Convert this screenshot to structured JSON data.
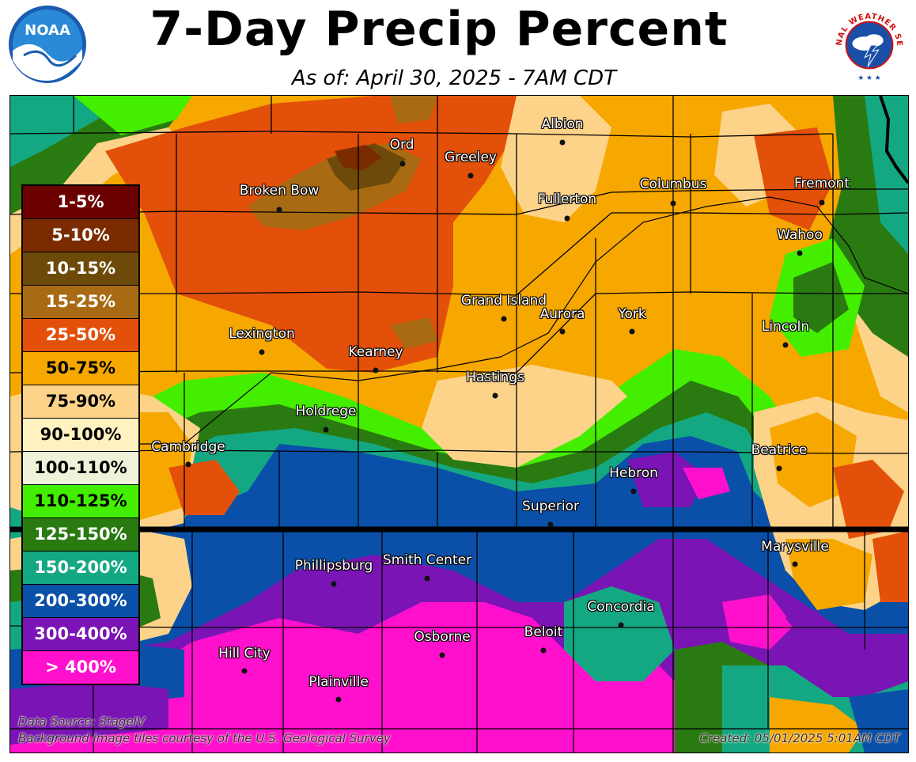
{
  "title": "7-Day Precip Percent",
  "subtitle": "As of: April 30, 2025 - 7AM CDT",
  "logos": {
    "noara_text": "NOAA",
    "nws_text": "NATIONAL WEATHER SERVICE"
  },
  "legend": [
    {
      "label": "1-5%",
      "color": "#6b0000",
      "text_color": "#ffffff"
    },
    {
      "label": "5-10%",
      "color": "#7a2c00",
      "text_color": "#ffffff"
    },
    {
      "label": "10-15%",
      "color": "#6e4a0a",
      "text_color": "#ffffff"
    },
    {
      "label": "15-25%",
      "color": "#a86a12",
      "text_color": "#ffffff"
    },
    {
      "label": "25-50%",
      "color": "#e2500a",
      "text_color": "#ffffff"
    },
    {
      "label": "50-75%",
      "color": "#f6a800",
      "text_color": "#000000"
    },
    {
      "label": "75-90%",
      "color": "#fdd38a",
      "text_color": "#000000"
    },
    {
      "label": "90-100%",
      "color": "#fff2c0",
      "text_color": "#000000"
    },
    {
      "label": "100-110%",
      "color": "#eef2d8",
      "text_color": "#000000"
    },
    {
      "label": "110-125%",
      "color": "#44ee00",
      "text_color": "#000000"
    },
    {
      "label": "125-150%",
      "color": "#2a7a12",
      "text_color": "#ffffff"
    },
    {
      "label": "150-200%",
      "color": "#14a882",
      "text_color": "#ffffff"
    },
    {
      "label": "200-300%",
      "color": "#0a50a8",
      "text_color": "#ffffff"
    },
    {
      "label": "300-400%",
      "color": "#7a14b4",
      "text_color": "#ffffff"
    },
    {
      "label": "> 400%",
      "color": "#ff10cc",
      "text_color": "#ffffff"
    }
  ],
  "cities": [
    {
      "name": "Ord"
    },
    {
      "name": "Albion"
    },
    {
      "name": "Greeley"
    },
    {
      "name": "Broken Bow"
    },
    {
      "name": "Fullerton"
    },
    {
      "name": "Columbus"
    },
    {
      "name": "Fremont"
    },
    {
      "name": "Wahoo"
    },
    {
      "name": "Grand Island"
    },
    {
      "name": "Aurora"
    },
    {
      "name": "York"
    },
    {
      "name": "Lincoln"
    },
    {
      "name": "Lexington"
    },
    {
      "name": "Kearney"
    },
    {
      "name": "Hastings"
    },
    {
      "name": "Holdrege"
    },
    {
      "name": "Cambridge"
    },
    {
      "name": "Beatrice"
    },
    {
      "name": "Hebron"
    },
    {
      "name": "Superior"
    },
    {
      "name": "Marysville"
    },
    {
      "name": "Phillipsburg"
    },
    {
      "name": "Smith Center"
    },
    {
      "name": "Concordia"
    },
    {
      "name": "Beloit"
    },
    {
      "name": "Osborne"
    },
    {
      "name": "Hill City"
    },
    {
      "name": "Plainville"
    }
  ],
  "notes": {
    "data_source": "Data Source: StageIV",
    "background": "Background image tiles courtesy of the U.S. Geological Survey",
    "created": "Created: 05/01/2025 5:01AM CDT"
  }
}
